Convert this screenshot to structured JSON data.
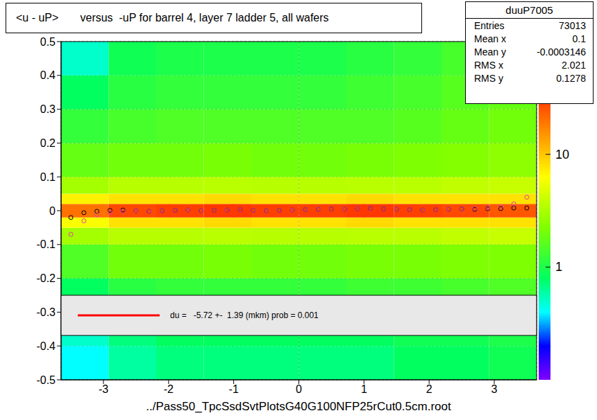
{
  "chart_data": {
    "type": "scatter",
    "title": "<u - uP>       versus  -uP for barrel 4, layer 7 ladder 5, all wafers",
    "x_label": "../Pass50_TpcSsdSvtPlotsG40G100NFP25rCut0.5cm.root",
    "xlim": [
      -3.65,
      3.65
    ],
    "ylim": [
      -0.5,
      0.5
    ],
    "xticks": [
      -3,
      -2,
      -1,
      0,
      1,
      2,
      3
    ],
    "yticks": [
      -0.5,
      -0.4,
      -0.3,
      -0.2,
      -0.1,
      0,
      0.1,
      0.2,
      0.3,
      0.4,
      0.5
    ],
    "grid": true,
    "x": [
      -3.5,
      -3.3,
      -3.1,
      -2.9,
      -2.7,
      -2.5,
      -2.3,
      -2.1,
      -1.9,
      -1.7,
      -1.5,
      -1.3,
      -1.1,
      -0.9,
      -0.7,
      -0.5,
      -0.3,
      -0.1,
      0.1,
      0.3,
      0.5,
      0.7,
      0.9,
      1.1,
      1.3,
      1.5,
      1.7,
      1.9,
      2.1,
      2.3,
      2.5,
      2.7,
      2.9,
      3.1,
      3.3,
      3.5
    ],
    "series": [
      {
        "color": "#000000",
        "marker": "circle",
        "values": [
          -0.02,
          -0.006,
          -0.002,
          0.001,
          0.002,
          0.0,
          -0.002,
          0.0,
          0.001,
          0.002,
          0.0,
          0.001,
          0.002,
          0.003,
          0.001,
          0.0,
          0.001,
          0.002,
          0.003,
          0.004,
          0.005,
          0.004,
          0.006,
          0.007,
          0.005,
          0.004,
          0.003,
          0.002,
          0.003,
          0.004,
          0.005,
          0.004,
          0.006,
          0.006,
          0.008,
          0.008
        ]
      },
      {
        "color": "#e040a0",
        "marker": "circle",
        "values": [
          -0.07,
          -0.03,
          -0.012,
          -0.005,
          -0.001,
          0.0,
          -0.002,
          0.0,
          0.001,
          0.002,
          0.0,
          0.001,
          0.002,
          0.003,
          0.001,
          0.0,
          0.001,
          0.002,
          0.003,
          0.004,
          0.005,
          0.004,
          0.006,
          0.007,
          0.005,
          0.004,
          0.003,
          0.002,
          0.003,
          0.004,
          0.005,
          0.006,
          0.008,
          0.012,
          0.02,
          0.04
        ]
      }
    ],
    "heatmap": {
      "x_bins": [
        -3.65,
        -2.92,
        -2.19,
        -1.46,
        -0.73,
        0,
        0.73,
        1.46,
        2.19,
        2.92,
        3.65
      ],
      "y_bins": [
        -0.5,
        -0.4,
        -0.3,
        -0.2,
        -0.1,
        -0.05,
        -0.02,
        0.02,
        0.05,
        0.1,
        0.2,
        0.3,
        0.4,
        0.5
      ],
      "z": [
        [
          0.4,
          0.5,
          0.8,
          1.5,
          3,
          6,
          20,
          7,
          3,
          1.8,
          1.2,
          0.8,
          0.5
        ],
        [
          0.6,
          0.7,
          1.1,
          2,
          3.5,
          8,
          28,
          8,
          3.5,
          2,
          1.4,
          1.1,
          0.9
        ],
        [
          0.7,
          0.8,
          1.2,
          2,
          3.5,
          8,
          30,
          8,
          3.5,
          2,
          1.5,
          1.2,
          1
        ],
        [
          0.7,
          0.8,
          1.2,
          2.1,
          3.6,
          8.5,
          32,
          8.5,
          3.6,
          2.1,
          1.5,
          1.2,
          1
        ],
        [
          0.7,
          0.8,
          1.2,
          2,
          3.5,
          8,
          30,
          8,
          3.5,
          2,
          1.5,
          1.2,
          1
        ],
        [
          0.7,
          0.8,
          1.2,
          2,
          3.5,
          8,
          30,
          8,
          3.5,
          2,
          1.5,
          1.2,
          1
        ],
        [
          0.7,
          0.8,
          1.3,
          2.1,
          3.6,
          8.5,
          32,
          8.5,
          3.6,
          2.1,
          1.5,
          1.3,
          1.1
        ],
        [
          0.8,
          0.9,
          1.3,
          2.1,
          3.6,
          8,
          30,
          8,
          3.6,
          2.2,
          1.6,
          1.4,
          1.2
        ],
        [
          0.8,
          0.9,
          1.4,
          2.2,
          3.8,
          8,
          28,
          8,
          3.8,
          2.3,
          1.8,
          1.6,
          1.4
        ],
        [
          0.9,
          1,
          1.5,
          2.2,
          4,
          8,
          25,
          8,
          4,
          2.5,
          2,
          1.8,
          1.6
        ]
      ],
      "range": [
        0.1,
        100
      ],
      "ticks": [
        1,
        10
      ]
    },
    "stats": {
      "name": "duuP7005",
      "rows": [
        [
          "Entries",
          73013
        ],
        [
          "Mean x",
          0.1
        ],
        [
          "Mean y",
          -0.0003146
        ],
        [
          "RMS x",
          2.021
        ],
        [
          "RMS y",
          0.1278
        ]
      ]
    },
    "fit_label": "du =   -5.72 +-  1.39 (mkm) prob = 0.001",
    "fit_color": "#ff0000"
  }
}
